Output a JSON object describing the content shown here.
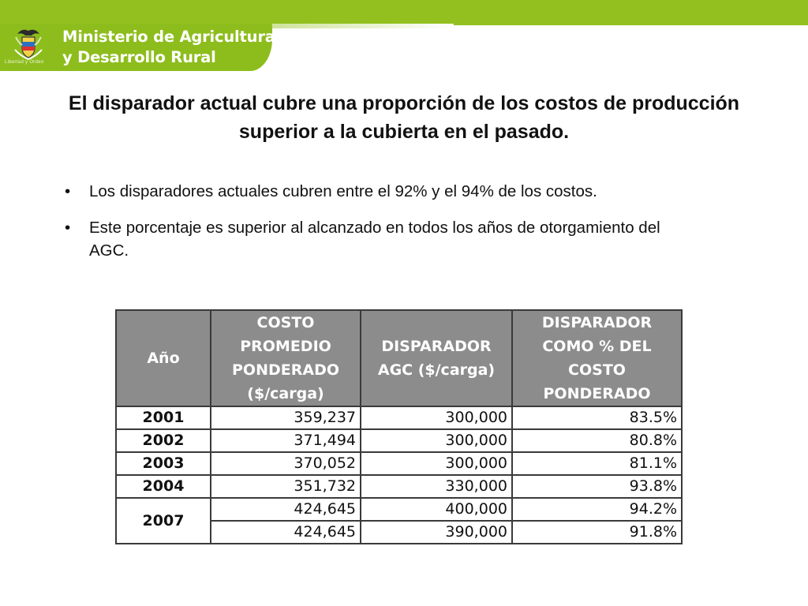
{
  "header": {
    "ministry_line1": "Ministerio de Agricultura",
    "ministry_line2": "y Desarrollo Rural",
    "motto": "Libertad y Orden",
    "brand_color": "#93c01f"
  },
  "slide": {
    "title": "El disparador actual cubre una proporción de los costos de producción superior a la cubierta en el pasado.",
    "bullets": [
      "Los disparadores actuales cubren entre el 92% y el 94% de los costos.",
      "Este porcentaje es superior al alcanzado en todos los años de otorgamiento del AGC."
    ]
  },
  "table": {
    "headers": [
      "Año",
      "COSTO PROMEDIO PONDERADO ($/carga)",
      "DISPARADOR AGC ($/carga)",
      "DISPARADOR COMO % DEL COSTO PONDERADO"
    ],
    "rows": [
      {
        "year": "2001",
        "cost": "359,237",
        "trigger": "300,000",
        "pct": "83.5%"
      },
      {
        "year": "2002",
        "cost": "371,494",
        "trigger": "300,000",
        "pct": "80.8%"
      },
      {
        "year": "2003",
        "cost": "370,052",
        "trigger": "300,000",
        "pct": "81.1%"
      },
      {
        "year": "2004",
        "cost": "351,732",
        "trigger": "330,000",
        "pct": "93.8%"
      },
      {
        "year": "2007",
        "cost": "424,645",
        "trigger": "400,000",
        "pct": "94.2%"
      },
      {
        "year": "",
        "cost": "424,645",
        "trigger": "390,000",
        "pct": "91.8%"
      }
    ]
  }
}
